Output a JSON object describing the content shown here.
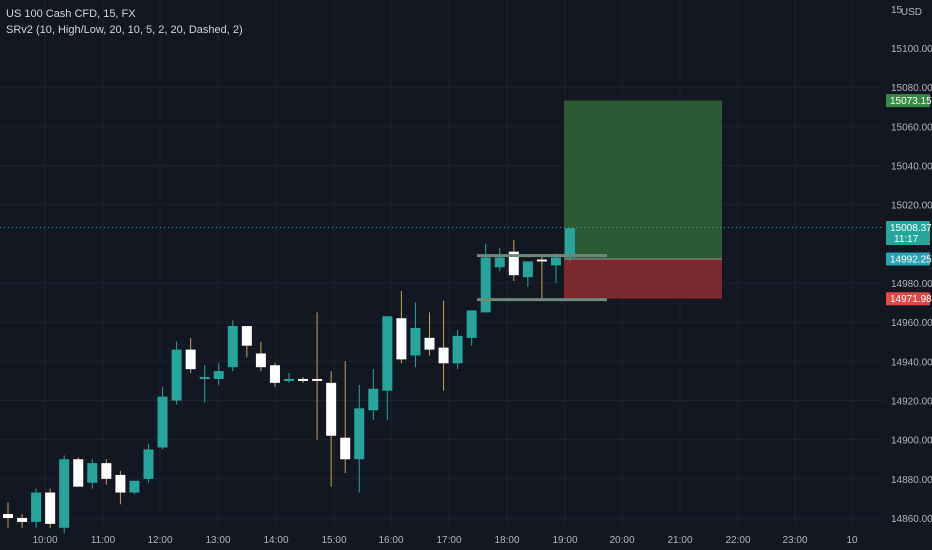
{
  "legend": {
    "symbol": "US 100 Cash CFD, 15, FX",
    "indicator": "SRv2 (10, High/Low, 20, 10, 5, 2, 20, Dashed, 2)"
  },
  "currency": "USD",
  "partial_top_tick": "15",
  "colors": {
    "background": "#131722",
    "up": "#26a69a",
    "down": "#ffffff",
    "wick": "#c8a15a",
    "profit_zone": "#2d5a35",
    "loss_zone": "#7a2a2e",
    "current_price_badge": "#26a69a",
    "take_profit_badge": "#3a8a47",
    "entry_badge": "#2aa3b5",
    "stop_badge": "#e04a4a"
  },
  "chart_data": {
    "type": "candlestick",
    "ylim": [
      14855,
      15125
    ],
    "y_ticks": [
      "15100.00",
      "15080.00",
      "15060.00",
      "15040.00",
      "15020.00",
      "14980.00",
      "14960.00",
      "14940.00",
      "14920.00",
      "14900.00",
      "14880.00",
      "14860.00"
    ],
    "x_ticks": [
      "10:00",
      "11:00",
      "12:00",
      "13:00",
      "14:00",
      "15:00",
      "16:00",
      "17:00",
      "18:00",
      "19:00",
      "20:00",
      "21:00",
      "22:00",
      "23:00",
      "10"
    ],
    "candles": [
      {
        "o": 14862,
        "h": 14868,
        "l": 14855,
        "c": 14860
      },
      {
        "o": 14860,
        "h": 14862,
        "l": 14855,
        "c": 14858
      },
      {
        "o": 14858,
        "h": 14875,
        "l": 14855,
        "c": 14873
      },
      {
        "o": 14873,
        "h": 14875,
        "l": 14855,
        "c": 14857
      },
      {
        "o": 14855,
        "h": 14892,
        "l": 14852,
        "c": 14890
      },
      {
        "o": 14890,
        "h": 14891,
        "l": 14876,
        "c": 14876
      },
      {
        "o": 14878,
        "h": 14890,
        "l": 14875,
        "c": 14888
      },
      {
        "o": 14888,
        "h": 14890,
        "l": 14877,
        "c": 14880
      },
      {
        "o": 14882,
        "h": 14884,
        "l": 14867,
        "c": 14873
      },
      {
        "o": 14873,
        "h": 14879,
        "l": 14872,
        "c": 14879
      },
      {
        "o": 14880,
        "h": 14898,
        "l": 14878,
        "c": 14895
      },
      {
        "o": 14896,
        "h": 14927,
        "l": 14895,
        "c": 14922
      },
      {
        "o": 14920,
        "h": 14950,
        "l": 14918,
        "c": 14946
      },
      {
        "o": 14946,
        "h": 14952,
        "l": 14934,
        "c": 14936
      },
      {
        "o": 14931,
        "h": 14938,
        "l": 14919,
        "c": 14932
      },
      {
        "o": 14931,
        "h": 14939,
        "l": 14928,
        "c": 14935
      },
      {
        "o": 14937,
        "h": 14961,
        "l": 14935,
        "c": 14958
      },
      {
        "o": 14958,
        "h": 14958,
        "l": 14942,
        "c": 14948
      },
      {
        "o": 14944,
        "h": 14950,
        "l": 14935,
        "c": 14937
      },
      {
        "o": 14938,
        "h": 14939,
        "l": 14927,
        "c": 14929
      },
      {
        "o": 14930,
        "h": 14934,
        "l": 14929,
        "c": 14931
      },
      {
        "o": 14931,
        "h": 14932,
        "l": 14929,
        "c": 14930
      },
      {
        "o": 14931,
        "h": 14965,
        "l": 14900,
        "c": 14930
      },
      {
        "o": 14929,
        "h": 14935,
        "l": 14876,
        "c": 14902
      },
      {
        "o": 14901,
        "h": 14940,
        "l": 14883,
        "c": 14890
      },
      {
        "o": 14890,
        "h": 14928,
        "l": 14873,
        "c": 14916
      },
      {
        "o": 14915,
        "h": 14936,
        "l": 14910,
        "c": 14926
      },
      {
        "o": 14925,
        "h": 14963,
        "l": 14910,
        "c": 14963
      },
      {
        "o": 14962,
        "h": 14976,
        "l": 14939,
        "c": 14941
      },
      {
        "o": 14943,
        "h": 14970,
        "l": 14937,
        "c": 14957
      },
      {
        "o": 14952,
        "h": 14965,
        "l": 14943,
        "c": 14946
      },
      {
        "o": 14947,
        "h": 14971,
        "l": 14925,
        "c": 14939
      },
      {
        "o": 14939,
        "h": 14956,
        "l": 14936,
        "c": 14953
      },
      {
        "o": 14952,
        "h": 14966,
        "l": 14948,
        "c": 14966
      },
      {
        "o": 14965,
        "h": 15000,
        "l": 14965,
        "c": 14993
      },
      {
        "o": 14988,
        "h": 14998,
        "l": 14986,
        "c": 14993
      },
      {
        "o": 14996,
        "h": 15002,
        "l": 14981,
        "c": 14984
      },
      {
        "o": 14983,
        "h": 14990,
        "l": 14978,
        "c": 14991
      },
      {
        "o": 14992,
        "h": 14994,
        "l": 14971,
        "c": 14991
      },
      {
        "o": 14989,
        "h": 14995,
        "l": 14980,
        "c": 14993
      },
      {
        "o": 14993,
        "h": 15008,
        "l": 14991,
        "c": 15008
      }
    ],
    "position": {
      "entry": 14992.25,
      "take_profit": 15073.15,
      "stop_loss": 14971.98
    },
    "labels": {
      "current_price": "15008.37",
      "countdown": "11:17",
      "take_profit": "15073.15",
      "entry": "14992.25",
      "stop_loss": "14971.98"
    }
  }
}
